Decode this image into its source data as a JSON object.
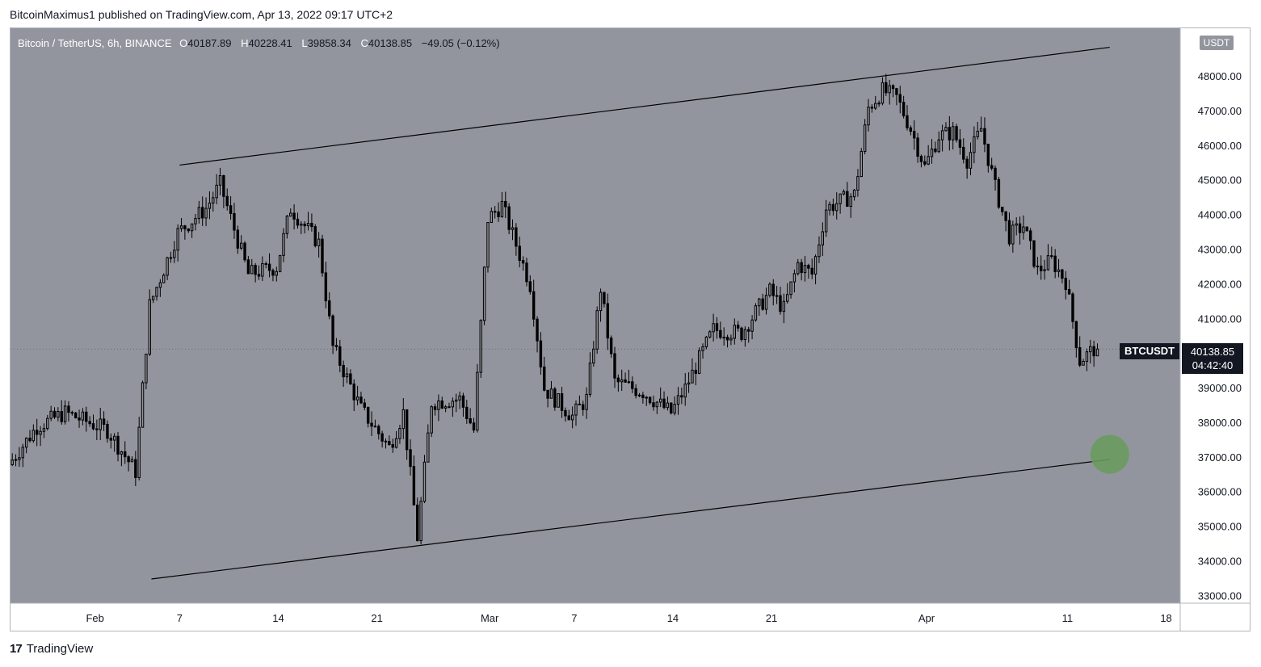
{
  "header": {
    "credit": "BitcoinMaximus1 published on TradingView.com, Apr 13, 2022 09:17 UTC+2"
  },
  "legend": {
    "symbol": "Bitcoin / TetherUS, 6h, BINANCE",
    "open_label": "O",
    "open": "40187.89",
    "high_label": "H",
    "high": "40228.41",
    "low_label": "L",
    "low": "39858.34",
    "close_label": "C",
    "close": "40138.85",
    "change": "−49.05 (−0.12%)"
  },
  "currency": "USDT",
  "last_price": {
    "symbol": "BTCUSDT",
    "price": "40138.85",
    "countdown": "04:42:40"
  },
  "footer": {
    "brand": "TradingView",
    "logo_text": "17"
  },
  "colors": {
    "plot_bg": "#93959e",
    "candle": "#000000",
    "target_circle": "#6a9a5e",
    "axis_text": "#131722"
  },
  "chart_data": {
    "type": "candlestick",
    "title": "Bitcoin / TetherUS, 6h, BINANCE",
    "y_unit": "USDT",
    "ylim": [
      32800,
      49400
    ],
    "y_ticks": [
      33000,
      34000,
      35000,
      36000,
      37000,
      38000,
      39000,
      40000,
      41000,
      42000,
      43000,
      44000,
      45000,
      46000,
      47000,
      48000
    ],
    "y_tick_labels": [
      "33000.00",
      "34000.00",
      "35000.00",
      "36000.00",
      "37000.00",
      "38000.00",
      "39000.00",
      "40000.00",
      "41000.00",
      "42000.00",
      "43000.00",
      "44000.00",
      "45000.00",
      "46000.00",
      "47000.00",
      "48000.00"
    ],
    "x_start": "2022-01-26",
    "x_end": "2022-04-19",
    "x_ticks": [
      {
        "date": "2022-02-01",
        "label": "Feb"
      },
      {
        "date": "2022-02-07",
        "label": "7"
      },
      {
        "date": "2022-02-14",
        "label": "14"
      },
      {
        "date": "2022-02-21",
        "label": "21"
      },
      {
        "date": "2022-03-01",
        "label": "Mar"
      },
      {
        "date": "2022-03-07",
        "label": "7"
      },
      {
        "date": "2022-03-14",
        "label": "14"
      },
      {
        "date": "2022-03-21",
        "label": "21"
      },
      {
        "date": "2022-04-01",
        "label": "Apr"
      },
      {
        "date": "2022-04-11",
        "label": "11"
      },
      {
        "date": "2022-04-18",
        "label": "18"
      }
    ],
    "path_points": [
      {
        "date": "2022-01-26",
        "price": 36800
      },
      {
        "date": "2022-01-28",
        "price": 37900
      },
      {
        "date": "2022-01-30",
        "price": 38300
      },
      {
        "date": "2022-02-02",
        "price": 37800
      },
      {
        "date": "2022-02-04",
        "price": 36600
      },
      {
        "date": "2022-02-05",
        "price": 41400
      },
      {
        "date": "2022-02-07",
        "price": 43500
      },
      {
        "date": "2022-02-09",
        "price": 44200
      },
      {
        "date": "2022-02-10",
        "price": 44900
      },
      {
        "date": "2022-02-12",
        "price": 42300
      },
      {
        "date": "2022-02-14",
        "price": 42500
      },
      {
        "date": "2022-02-15",
        "price": 44200
      },
      {
        "date": "2022-02-17",
        "price": 43200
      },
      {
        "date": "2022-02-18",
        "price": 40200
      },
      {
        "date": "2022-02-20",
        "price": 38400
      },
      {
        "date": "2022-02-22",
        "price": 37300
      },
      {
        "date": "2022-02-23",
        "price": 38300
      },
      {
        "date": "2022-02-24",
        "price": 34700
      },
      {
        "date": "2022-02-25",
        "price": 38600
      },
      {
        "date": "2022-02-27",
        "price": 38700
      },
      {
        "date": "2022-02-28",
        "price": 37800
      },
      {
        "date": "2022-03-01",
        "price": 43900
      },
      {
        "date": "2022-03-02",
        "price": 44300
      },
      {
        "date": "2022-03-04",
        "price": 42000
      },
      {
        "date": "2022-03-05",
        "price": 39000
      },
      {
        "date": "2022-03-07",
        "price": 38200
      },
      {
        "date": "2022-03-08",
        "price": 38700
      },
      {
        "date": "2022-03-09",
        "price": 41900
      },
      {
        "date": "2022-03-10",
        "price": 39200
      },
      {
        "date": "2022-03-12",
        "price": 38900
      },
      {
        "date": "2022-03-14",
        "price": 38300
      },
      {
        "date": "2022-03-15",
        "price": 39000
      },
      {
        "date": "2022-03-17",
        "price": 40700
      },
      {
        "date": "2022-03-19",
        "price": 40600
      },
      {
        "date": "2022-03-21",
        "price": 41800
      },
      {
        "date": "2022-03-22",
        "price": 41300
      },
      {
        "date": "2022-03-23",
        "price": 42600
      },
      {
        "date": "2022-03-24",
        "price": 42300
      },
      {
        "date": "2022-03-25",
        "price": 44200
      },
      {
        "date": "2022-03-27",
        "price": 44600
      },
      {
        "date": "2022-03-28",
        "price": 47100
      },
      {
        "date": "2022-03-29",
        "price": 47600
      },
      {
        "date": "2022-03-30",
        "price": 47400
      },
      {
        "date": "2022-03-31",
        "price": 46500
      },
      {
        "date": "2022-04-01",
        "price": 45400
      },
      {
        "date": "2022-04-02",
        "price": 46300
      },
      {
        "date": "2022-04-03",
        "price": 46400
      },
      {
        "date": "2022-04-04",
        "price": 45600
      },
      {
        "date": "2022-04-05",
        "price": 46500
      },
      {
        "date": "2022-04-06",
        "price": 44800
      },
      {
        "date": "2022-04-07",
        "price": 43400
      },
      {
        "date": "2022-04-08",
        "price": 43700
      },
      {
        "date": "2022-04-09",
        "price": 42400
      },
      {
        "date": "2022-04-10",
        "price": 42700
      },
      {
        "date": "2022-04-11",
        "price": 42100
      },
      {
        "date": "2022-04-12",
        "price": 39800
      },
      {
        "date": "2022-04-13",
        "price": 40139
      }
    ],
    "channel_lines": [
      {
        "name": "upper",
        "from": {
          "date": "2022-02-07",
          "price": 45450
        },
        "to": {
          "date": "2022-04-14",
          "price": 48850
        }
      },
      {
        "name": "lower",
        "from": {
          "date": "2022-02-05",
          "price": 33500
        },
        "to": {
          "date": "2022-04-14",
          "price": 36950
        }
      }
    ],
    "target_marker": {
      "date": "2022-04-14",
      "price": 37100
    },
    "last_close": 40138.85
  }
}
